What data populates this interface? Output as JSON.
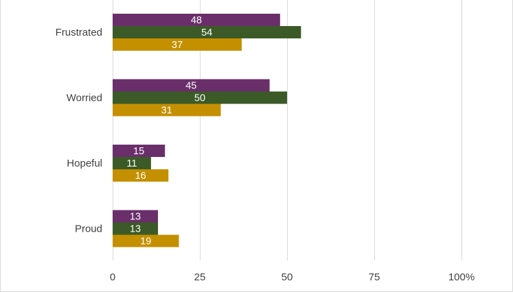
{
  "chart_data": {
    "type": "bar",
    "orientation": "horizontal",
    "categories": [
      "Frustrated",
      "Worried",
      "Hopeful",
      "Proud"
    ],
    "series": [
      {
        "values": [
          48,
          45,
          15,
          13
        ],
        "color": "#6a2f6a"
      },
      {
        "values": [
          54,
          50,
          11,
          13
        ],
        "color": "#3b5a27"
      },
      {
        "values": [
          37,
          31,
          16,
          19
        ],
        "color": "#c49000"
      }
    ],
    "xlim": [
      0,
      100
    ],
    "x_ticks": [
      {
        "value": 0,
        "label": "0"
      },
      {
        "value": 25,
        "label": "25"
      },
      {
        "value": 50,
        "label": "50"
      },
      {
        "value": 75,
        "label": "75"
      },
      {
        "value": 100,
        "label": "100%"
      }
    ],
    "grid": true,
    "legend": false,
    "data_labels": true,
    "title": "",
    "xlabel": "",
    "ylabel": ""
  }
}
